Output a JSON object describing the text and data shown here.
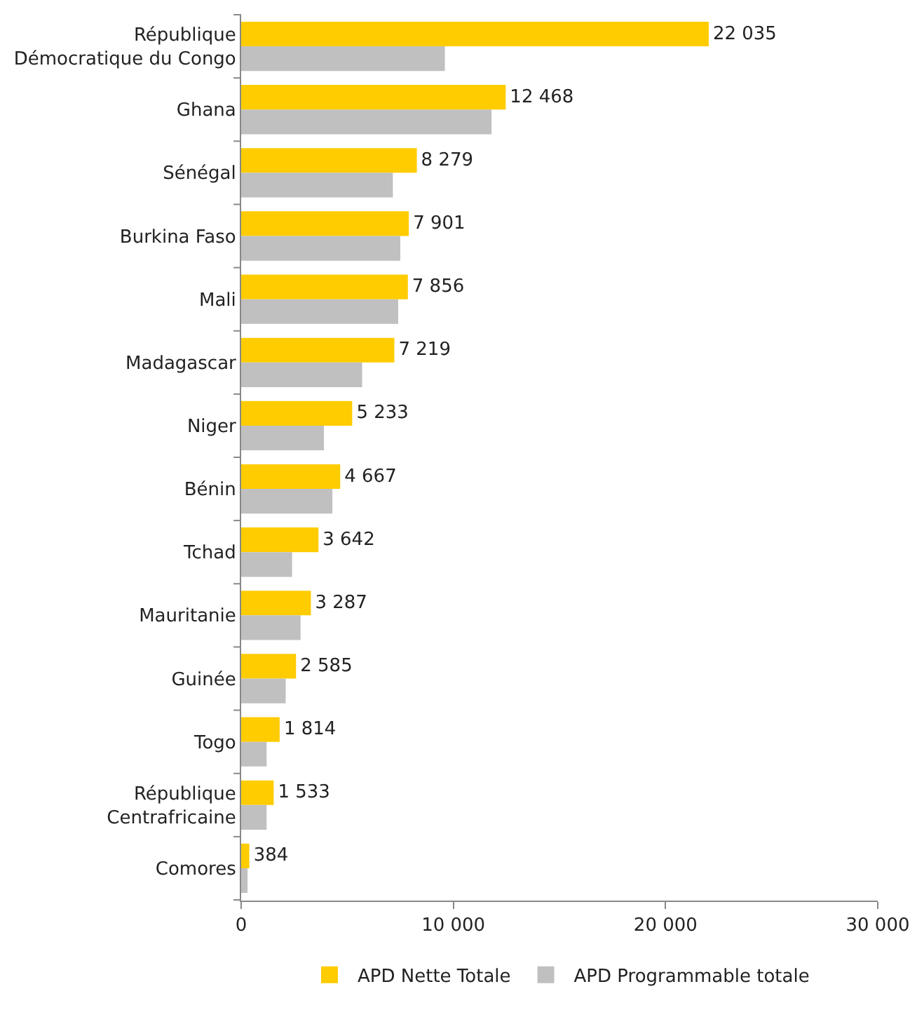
{
  "chart_data": {
    "type": "bar",
    "orientation": "horizontal",
    "categories": [
      "République\nDémocratique du Congo",
      "Ghana",
      "Sénégal",
      "Burkina Faso",
      "Mali",
      "Madagascar",
      "Niger",
      "Bénin",
      "Tchad",
      "Mauritanie",
      "Guinée",
      "Togo",
      "République\nCentrafricaine",
      "Comores"
    ],
    "series": [
      {
        "name": "APD Nette Totale",
        "color": "#ffcc00",
        "values": [
          22035,
          12468,
          8279,
          7901,
          7856,
          7219,
          5233,
          4667,
          3642,
          3287,
          2585,
          1814,
          1533,
          384
        ],
        "value_labels": [
          "22 035",
          "12 468",
          "8 279",
          "7 901",
          "7 856",
          "7 219",
          "5 233",
          "4 667",
          "3 642",
          "3 287",
          "2 585",
          "1 814",
          "1 533",
          "384"
        ]
      },
      {
        "name": "APD Programmable totale",
        "color": "#c0c0c0",
        "values": [
          9600,
          11800,
          7150,
          7500,
          7400,
          5700,
          3900,
          4300,
          2400,
          2800,
          2100,
          1200,
          1200,
          300
        ]
      }
    ],
    "xlim": [
      0,
      30000
    ],
    "xticks": [
      0,
      {
        "value": 10000,
        "label": "10 000"
      },
      {
        "value": 20000,
        "label": "20 000"
      },
      {
        "value": 30000,
        "label": "30 000"
      }
    ],
    "legend": "bottom"
  }
}
